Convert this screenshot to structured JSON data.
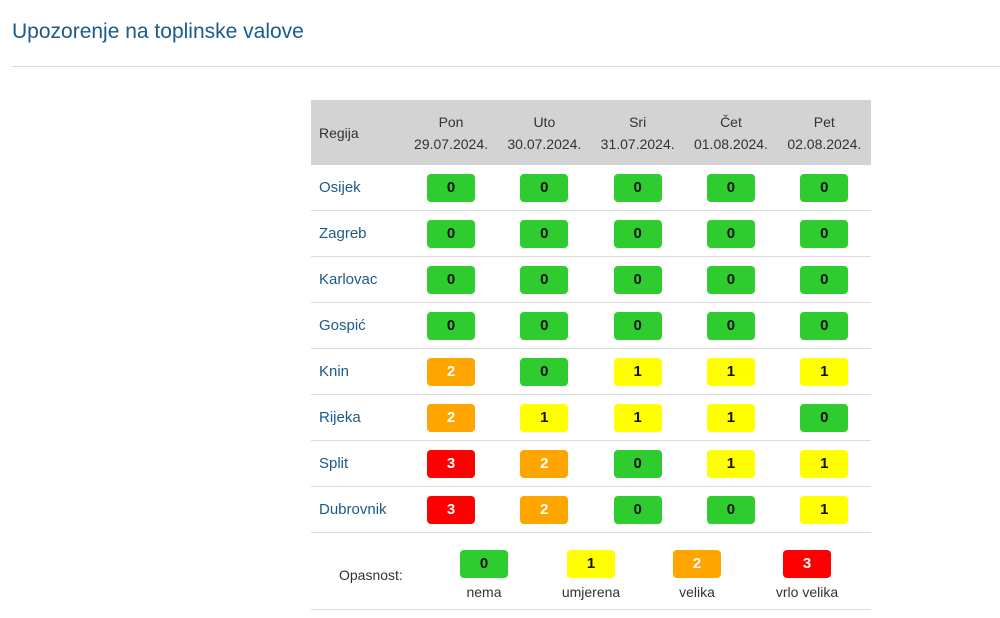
{
  "page": {
    "title": "Upozorenje na toplinske valove"
  },
  "table": {
    "region_header": "Regija",
    "days": [
      {
        "name": "Pon",
        "date": "29.07.2024."
      },
      {
        "name": "Uto",
        "date": "30.07.2024."
      },
      {
        "name": "Sri",
        "date": "31.07.2024."
      },
      {
        "name": "Čet",
        "date": "01.08.2024."
      },
      {
        "name": "Pet",
        "date": "02.08.2024."
      }
    ],
    "rows": [
      {
        "region": "Osijek",
        "levels": [
          "0",
          "0",
          "0",
          "0",
          "0"
        ]
      },
      {
        "region": "Zagreb",
        "levels": [
          "0",
          "0",
          "0",
          "0",
          "0"
        ]
      },
      {
        "region": "Karlovac",
        "levels": [
          "0",
          "0",
          "0",
          "0",
          "0"
        ]
      },
      {
        "region": "Gospić",
        "levels": [
          "0",
          "0",
          "0",
          "0",
          "0"
        ]
      },
      {
        "region": "Knin",
        "levels": [
          "2",
          "0",
          "1",
          "1",
          "1"
        ]
      },
      {
        "region": "Rijeka",
        "levels": [
          "2",
          "1",
          "1",
          "1",
          "0"
        ]
      },
      {
        "region": "Split",
        "levels": [
          "3",
          "2",
          "0",
          "1",
          "1"
        ]
      },
      {
        "region": "Dubrovnik",
        "levels": [
          "3",
          "2",
          "0",
          "0",
          "1"
        ]
      }
    ]
  },
  "legend": {
    "label": "Opasnost:",
    "items": [
      {
        "level": "0",
        "text": "nema"
      },
      {
        "level": "1",
        "text": "umjerena"
      },
      {
        "level": "2",
        "text": "velika"
      },
      {
        "level": "3",
        "text": "vrlo velika"
      }
    ]
  },
  "colors": {
    "level_0": "#2ecc2e",
    "level_1": "#ffff00",
    "level_2": "#ffa500",
    "level_3": "#ff0000",
    "title": "#1c5a8a",
    "header_bg": "#d3d3d3"
  }
}
